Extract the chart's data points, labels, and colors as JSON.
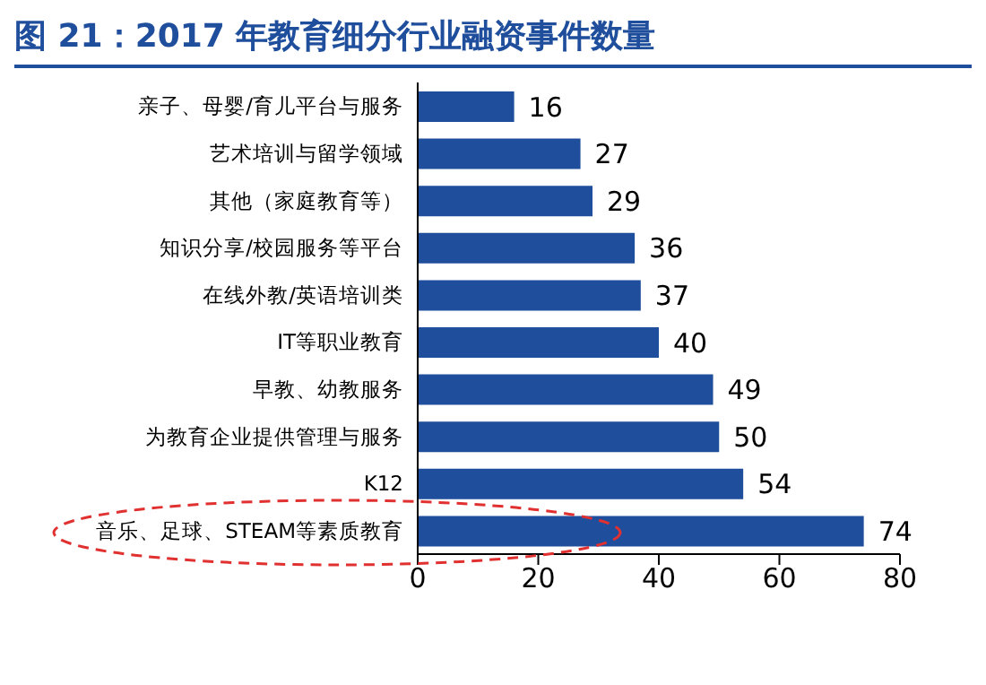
{
  "chart_data": {
    "type": "bar",
    "orientation": "horizontal",
    "title": "图 21：2017 年教育细分行业融资事件数量",
    "categories": [
      "亲子、母婴/育儿平台与服务",
      "艺术培训与留学领域",
      "其他（家庭教育等）",
      "知识分享/校园服务等平台",
      "在线外教/英语培训类",
      "IT等职业教育",
      "早教、幼教服务",
      "为教育企业提供管理与服务",
      "K12",
      "音乐、足球、STEAM等素质教育"
    ],
    "values": [
      16,
      27,
      29,
      36,
      37,
      40,
      49,
      50,
      54,
      74
    ],
    "color": "#1f4e9c",
    "xlim": [
      0,
      80
    ],
    "xticks": [
      0,
      20,
      40,
      60,
      80
    ],
    "data_labels": true
  }
}
